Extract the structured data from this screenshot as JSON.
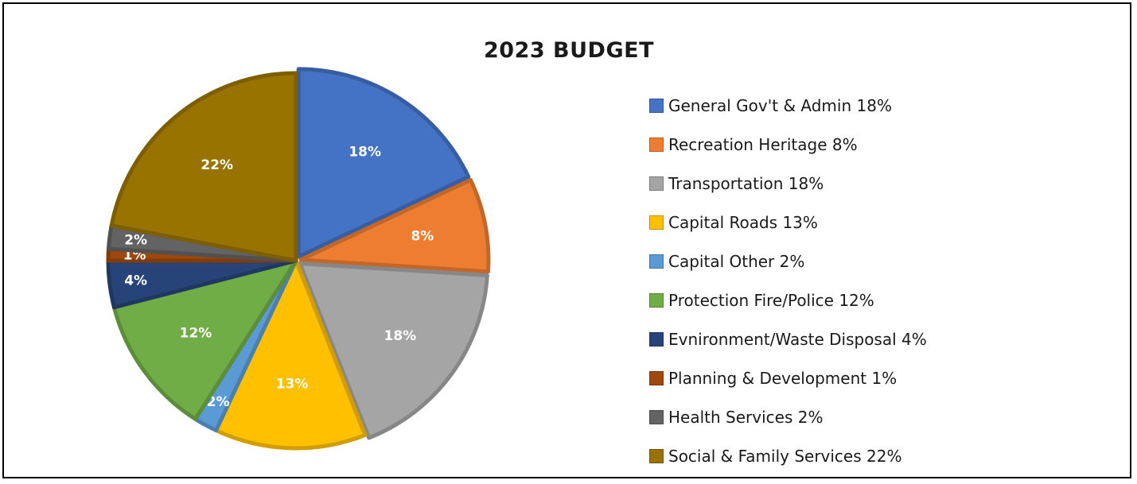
{
  "chart_data": {
    "type": "pie",
    "title": "2023 BUDGET",
    "legend_position": "right",
    "unit": "%",
    "slices": [
      {
        "label": "General Gov't & Admin 18%",
        "value": 18,
        "data_label": "18%",
        "color": "#4472C4"
      },
      {
        "label": "Recreation Heritage 8%",
        "value": 8,
        "data_label": "8%",
        "color": "#ED7D31"
      },
      {
        "label": "Transportation 18%",
        "value": 18,
        "data_label": "18%",
        "color": "#A5A5A5"
      },
      {
        "label": "Capital Roads 13%",
        "value": 13,
        "data_label": "13%",
        "color": "#FFC000"
      },
      {
        "label": "Capital Other 2%",
        "value": 2,
        "data_label": "2%",
        "color": "#5B9BD5"
      },
      {
        "label": "Protection Fire/Police 12%",
        "value": 12,
        "data_label": "12%",
        "color": "#70AD47"
      },
      {
        "label": "Evnironment/Waste Disposal 4%",
        "value": 4,
        "data_label": "4%",
        "color": "#264478"
      },
      {
        "label": "Planning & Development 1%",
        "value": 1,
        "data_label": "1%",
        "color": "#9E480E"
      },
      {
        "label": "Health Services 2%",
        "value": 2,
        "data_label": "2%",
        "color": "#636363"
      },
      {
        "label": "Social & Family Services 22%",
        "value": 22,
        "data_label": "22%",
        "color": "#997300"
      }
    ]
  }
}
